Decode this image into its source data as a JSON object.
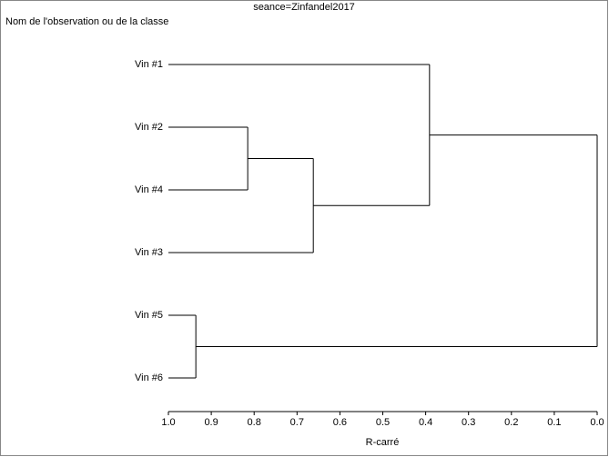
{
  "chart_data": {
    "type": "dendrogram",
    "title": "seance=Zinfandel2017",
    "y_label": "Nom de l'observation ou de la classe",
    "x_label": "R-carré",
    "xlim": [
      1,
      0
    ],
    "xticks": [
      {
        "value": 1,
        "label": "1.0"
      },
      0.9,
      0.8,
      0.7,
      0.6,
      0.5,
      0.4,
      0.3,
      0.2,
      0.1,
      {
        "value": 0,
        "label": "0.0"
      }
    ],
    "color": "#000000",
    "tree": {
      "value": 0,
      "children": [
        {
          "value": 0.391,
          "children": [
            {
              "label": "Vin #1"
            },
            {
              "value": 0.662,
              "children": [
                {
                  "value": 0.815,
                  "children": [
                    {
                      "label": "Vin #2"
                    },
                    {
                      "label": "Vin #4"
                    }
                  ]
                },
                {
                  "label": "Vin #3"
                }
              ]
            }
          ]
        },
        {
          "value": 0.936,
          "children": [
            {
              "label": "Vin #5"
            },
            {
              "label": "Vin #6"
            }
          ]
        }
      ]
    }
  }
}
